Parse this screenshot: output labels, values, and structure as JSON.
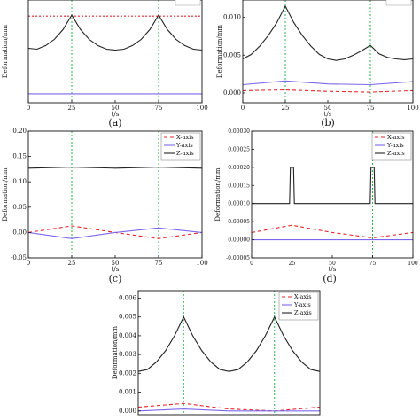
{
  "chart_data": [
    {
      "id": "a",
      "type": "line",
      "caption": "(a)",
      "xlabel": "t/s",
      "ylabel": "Deformation/mm",
      "xlim": [
        0,
        100
      ],
      "ylim": [
        -0.001,
        0.0105
      ],
      "xticks": [
        "0",
        "25",
        "50",
        "75",
        "100"
      ],
      "yticks": [],
      "legend": "top-right (cropped, unreadable)",
      "series": [
        {
          "color": "#e8262a",
          "dash": "2,2",
          "x": [
            0,
            100
          ],
          "y": [
            0.0087,
            0.0087
          ]
        },
        {
          "color": "#7b68ee",
          "dash": "",
          "x": [
            0,
            100
          ],
          "y": [
            0.0,
            0.0
          ]
        },
        {
          "color": "#222222",
          "dash": "",
          "x": [
            0,
            5,
            10,
            15,
            20,
            25,
            30,
            35,
            40,
            45,
            50,
            55,
            60,
            65,
            70,
            75,
            80,
            85,
            90,
            95,
            100
          ],
          "y": [
            0.0051,
            0.005,
            0.0054,
            0.0061,
            0.0072,
            0.0088,
            0.0072,
            0.0061,
            0.0054,
            0.005,
            0.0049,
            0.005,
            0.0054,
            0.0061,
            0.0072,
            0.0088,
            0.0072,
            0.0061,
            0.0054,
            0.005,
            0.0049
          ]
        }
      ],
      "vlines": [
        25,
        75
      ]
    },
    {
      "id": "b",
      "type": "line",
      "caption": "(b)",
      "xlabel": "t/s",
      "ylabel": "Deformation/mm",
      "xlim": [
        0,
        100
      ],
      "ylim": [
        -0.0013,
        0.0123
      ],
      "xticks": [
        "0",
        "25",
        "50",
        "75",
        "100"
      ],
      "yticks": [
        "0.000",
        "0.005",
        "0.010"
      ],
      "legend": "top-right (cropped, unreadable)",
      "series": [
        {
          "color": "#e8262a",
          "dash": "4,3",
          "x": [
            0,
            25,
            50,
            75,
            100
          ],
          "y": [
            0.0003,
            0.0004,
            0.0002,
            0.0001,
            0.0003
          ]
        },
        {
          "color": "#7b68ee",
          "dash": "",
          "x": [
            0,
            25,
            50,
            75,
            100
          ],
          "y": [
            0.0011,
            0.0016,
            0.0012,
            0.0011,
            0.0015
          ]
        },
        {
          "color": "#222222",
          "dash": "",
          "x": [
            0,
            5,
            10,
            15,
            20,
            25,
            30,
            35,
            40,
            45,
            50,
            55,
            60,
            65,
            70,
            75,
            80,
            85,
            90,
            95,
            100
          ],
          "y": [
            0.0045,
            0.0051,
            0.0062,
            0.0076,
            0.0093,
            0.0115,
            0.0093,
            0.0076,
            0.0062,
            0.0051,
            0.0045,
            0.0043,
            0.0045,
            0.005,
            0.0056,
            0.0063,
            0.0052,
            0.0047,
            0.0045,
            0.0044,
            0.0045
          ]
        }
      ],
      "vlines": [
        25,
        75
      ]
    },
    {
      "id": "c",
      "type": "line",
      "caption": "(c)",
      "xlabel": "t/s",
      "ylabel": "Deformation/mm",
      "xlim": [
        0,
        100
      ],
      "ylim": [
        -0.05,
        0.2
      ],
      "xticks": [
        "0",
        "25",
        "50",
        "75",
        "100"
      ],
      "yticks": [
        "-0.05",
        "0.00",
        "0.05",
        "0.10",
        "0.15",
        "0.20"
      ],
      "legend": "top-right",
      "series": [
        {
          "name": "X-axis",
          "color": "#e8262a",
          "dash": "4,3",
          "x": [
            0,
            25,
            50,
            75,
            100
          ],
          "y": [
            0.0,
            0.013,
            0.0,
            -0.012,
            0.0
          ]
        },
        {
          "name": "Y-axis",
          "color": "#7b68ee",
          "dash": "",
          "x": [
            0,
            25,
            50,
            75,
            100
          ],
          "y": [
            0.0,
            -0.012,
            0.0,
            0.009,
            0.0
          ]
        },
        {
          "name": "Z-axis",
          "color": "#222222",
          "dash": "",
          "x": [
            0,
            25,
            50,
            75,
            100
          ],
          "y": [
            0.127,
            0.129,
            0.127,
            0.129,
            0.127
          ]
        }
      ],
      "vlines": [
        25,
        75
      ]
    },
    {
      "id": "d",
      "type": "line",
      "caption": "(d)",
      "xlabel": "t/s",
      "ylabel": "Deformation/mm",
      "xlim": [
        0,
        100
      ],
      "ylim": [
        -5e-05,
        0.0003
      ],
      "xticks": [
        "0",
        "25",
        "50",
        "75",
        "100"
      ],
      "yticks": [
        "-0.00005",
        "0.00000",
        "0.00005",
        "0.00010",
        "0.00015",
        "0.00020",
        "0.00025",
        "0.00030"
      ],
      "legend": "top-right",
      "series": [
        {
          "name": "X-axis",
          "color": "#e8262a",
          "dash": "4,3",
          "x": [
            0,
            25,
            50,
            75,
            100
          ],
          "y": [
            2e-05,
            4e-05,
            2e-05,
            5e-06,
            2e-05
          ]
        },
        {
          "name": "Y-axis",
          "color": "#7b68ee",
          "dash": "",
          "x": [
            0,
            100
          ],
          "y": [
            0.0,
            0.0
          ]
        },
        {
          "name": "Z-axis",
          "color": "#222222",
          "dash": "",
          "x": [
            0,
            23.5,
            24,
            26,
            26.5,
            73.5,
            74,
            76,
            76.5,
            100
          ],
          "y": [
            0.0001,
            0.0001,
            0.0002,
            0.0002,
            0.0001,
            0.0001,
            0.0002,
            0.0002,
            0.0001,
            0.0001
          ]
        }
      ],
      "vlines": [
        25,
        75
      ]
    },
    {
      "id": "e",
      "type": "line",
      "caption": "",
      "xlabel": "",
      "ylabel": "Deformation/mm",
      "xlim": [
        0,
        100
      ],
      "ylim": [
        -0.0002,
        0.0064
      ],
      "xticks": [],
      "yticks": [
        "0.000",
        "0.001",
        "0.002",
        "0.003",
        "0.004",
        "0.005",
        "0.006"
      ],
      "legend": "top-right",
      "series": [
        {
          "name": "X-axis",
          "color": "#e8262a",
          "dash": "4,3",
          "x": [
            0,
            25,
            50,
            75,
            100
          ],
          "y": [
            0.0002,
            0.0004,
            0.0001,
            0.0,
            0.0002
          ]
        },
        {
          "name": "Y-axis",
          "color": "#7b68ee",
          "dash": "",
          "x": [
            0,
            25,
            50,
            75,
            100
          ],
          "y": [
            0.0,
            0.0001,
            0.0,
            0.0,
            0.0
          ]
        },
        {
          "name": "Z-axis",
          "color": "#222222",
          "dash": "",
          "x": [
            0,
            5,
            10,
            15,
            20,
            25,
            30,
            35,
            40,
            45,
            50,
            55,
            60,
            65,
            70,
            75,
            80,
            85,
            90,
            95,
            100
          ],
          "y": [
            0.0021,
            0.0022,
            0.0026,
            0.0032,
            0.004,
            0.005,
            0.004,
            0.0032,
            0.0026,
            0.0022,
            0.0021,
            0.0022,
            0.0026,
            0.0032,
            0.004,
            0.005,
            0.004,
            0.0032,
            0.0026,
            0.0022,
            0.0021
          ]
        }
      ],
      "vlines": [
        25,
        75
      ]
    }
  ]
}
